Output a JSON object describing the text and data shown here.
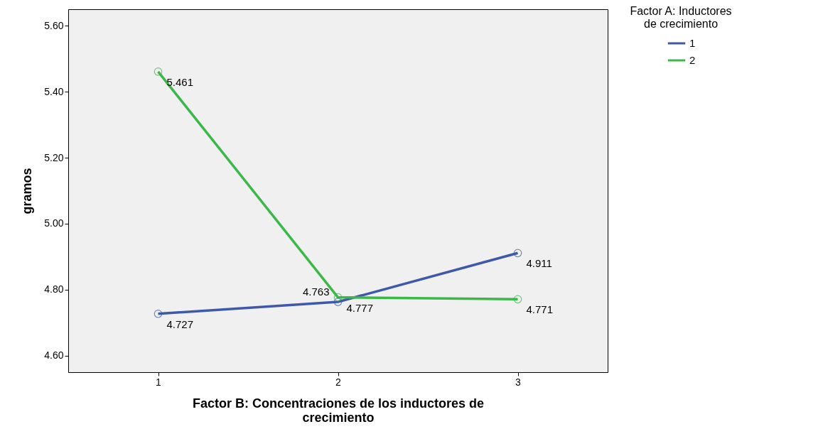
{
  "chart_data": {
    "type": "line",
    "xlabel": "Factor B: Concentraciones de los inductores de crecimiento",
    "ylabel": "gramos",
    "legend_title": "Factor A: Inductores de crecimiento",
    "categories": [
      "1",
      "2",
      "3"
    ],
    "series": [
      {
        "name": "1",
        "color": "#3f58a8",
        "values": [
          4.727,
          4.763,
          4.911
        ]
      },
      {
        "name": "2",
        "color": "#3cb84a",
        "values": [
          5.461,
          4.777,
          4.771
        ]
      }
    ],
    "ylim": [
      4.55,
      5.65
    ],
    "yticks": [
      {
        "value": 4.6,
        "label": "4.60"
      },
      {
        "value": 4.8,
        "label": "4.80"
      },
      {
        "value": 5.0,
        "label": "5.00"
      },
      {
        "value": 5.2,
        "label": "5.20"
      },
      {
        "value": 5.4,
        "label": "5.40"
      },
      {
        "value": 5.6,
        "label": "5.60"
      }
    ],
    "grid": false,
    "legend": "top right",
    "marker": "circle",
    "line_style": "solid",
    "data_labels": true
  }
}
